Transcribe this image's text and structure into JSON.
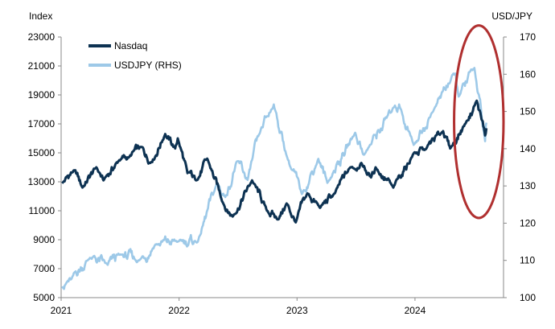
{
  "chart_data": {
    "type": "line",
    "left_axis_label": "Index",
    "right_axis_label": "USD/JPY",
    "y_left": {
      "range": [
        5000,
        23000
      ],
      "ticks": [
        5000,
        7000,
        9000,
        11000,
        13000,
        15000,
        17000,
        19000,
        21000,
        23000
      ],
      "tick_labels": [
        "5000",
        "7000",
        "9000",
        "11000",
        "13000",
        "15000",
        "17000",
        "19000",
        "21000",
        "23000"
      ]
    },
    "y_right": {
      "range": [
        100,
        170
      ],
      "ticks": [
        100,
        110,
        120,
        130,
        140,
        150,
        160,
        170
      ],
      "tick_labels": [
        "100",
        "110",
        "120",
        "130",
        "140",
        "150",
        "160",
        "170"
      ]
    },
    "x_axis": {
      "range": [
        "2021-01-01",
        "2024-10-01"
      ],
      "ticks": [
        "2021-01-01",
        "2022-01-01",
        "2023-01-01",
        "2024-01-01"
      ],
      "tick_labels": [
        "2021",
        "2022",
        "2023",
        "2024"
      ]
    },
    "grid": false,
    "legend_position": "top-left",
    "series": [
      {
        "name": "Nasdaq",
        "axis": "left",
        "color": "#0d3252",
        "points": [
          [
            "2021-01-04",
            12900
          ],
          [
            "2021-02-10",
            13800
          ],
          [
            "2021-03-08",
            12600
          ],
          [
            "2021-04-20",
            14000
          ],
          [
            "2021-05-12",
            13100
          ],
          [
            "2021-06-30",
            14500
          ],
          [
            "2021-07-30",
            14700
          ],
          [
            "2021-09-07",
            15400
          ],
          [
            "2021-10-04",
            14300
          ],
          [
            "2021-11-19",
            16300
          ],
          [
            "2021-12-20",
            15300
          ],
          [
            "2021-12-28",
            16000
          ],
          [
            "2022-01-27",
            13600
          ],
          [
            "2022-02-23",
            13100
          ],
          [
            "2022-03-29",
            14600
          ],
          [
            "2022-05-20",
            11400
          ],
          [
            "2022-06-16",
            10600
          ],
          [
            "2022-08-15",
            13100
          ],
          [
            "2022-09-30",
            11000
          ],
          [
            "2022-11-03",
            10400
          ],
          [
            "2022-11-30",
            11500
          ],
          [
            "2022-12-28",
            10200
          ],
          [
            "2023-02-02",
            12200
          ],
          [
            "2023-03-13",
            11200
          ],
          [
            "2023-04-28",
            12200
          ],
          [
            "2023-06-15",
            14000
          ],
          [
            "2023-07-19",
            14300
          ],
          [
            "2023-08-18",
            13300
          ],
          [
            "2023-09-01",
            14000
          ],
          [
            "2023-10-26",
            12600
          ],
          [
            "2023-12-29",
            15000
          ],
          [
            "2024-01-31",
            15200
          ],
          [
            "2024-03-28",
            16500
          ],
          [
            "2024-04-19",
            15300
          ],
          [
            "2024-06-07",
            17100
          ],
          [
            "2024-07-10",
            18600
          ],
          [
            "2024-07-25",
            17300
          ],
          [
            "2024-08-05",
            16200
          ],
          [
            "2024-08-09",
            16700
          ]
        ]
      },
      {
        "name": "USDJPY (RHS)",
        "axis": "right",
        "color": "#9dc9e8",
        "points": [
          [
            "2021-01-04",
            103.0
          ],
          [
            "2021-02-01",
            104.9
          ],
          [
            "2021-03-31",
            110.7
          ],
          [
            "2021-05-25",
            108.8
          ],
          [
            "2021-07-01",
            111.5
          ],
          [
            "2021-08-31",
            110.0
          ],
          [
            "2021-10-20",
            114.3
          ],
          [
            "2021-12-31",
            115.1
          ],
          [
            "2022-02-28",
            115.0
          ],
          [
            "2022-04-28",
            130.7
          ],
          [
            "2022-05-24",
            127.0
          ],
          [
            "2022-06-29",
            136.6
          ],
          [
            "2022-08-01",
            131.6
          ],
          [
            "2022-09-07",
            144.0
          ],
          [
            "2022-10-21",
            151.9
          ],
          [
            "2022-11-30",
            138.1
          ],
          [
            "2023-01-16",
            127.8
          ],
          [
            "2023-03-08",
            137.3
          ],
          [
            "2023-04-05",
            130.8
          ],
          [
            "2023-06-30",
            144.3
          ],
          [
            "2023-07-28",
            138.4
          ],
          [
            "2023-10-31",
            151.6
          ],
          [
            "2023-11-13",
            151.9
          ],
          [
            "2023-12-28",
            141.0
          ],
          [
            "2024-02-29",
            150.6
          ],
          [
            "2024-04-29",
            160.2
          ],
          [
            "2024-05-15",
            154.0
          ],
          [
            "2024-07-03",
            161.7
          ],
          [
            "2024-08-05",
            142.0
          ],
          [
            "2024-08-09",
            147.0
          ]
        ]
      }
    ],
    "annotations": [
      {
        "type": "ellipse",
        "color": "#b03030",
        "x_range": [
          "2024-05-01",
          "2024-10-01"
        ],
        "y_range": [
          10500,
          23800
        ],
        "axis": "left"
      }
    ]
  }
}
